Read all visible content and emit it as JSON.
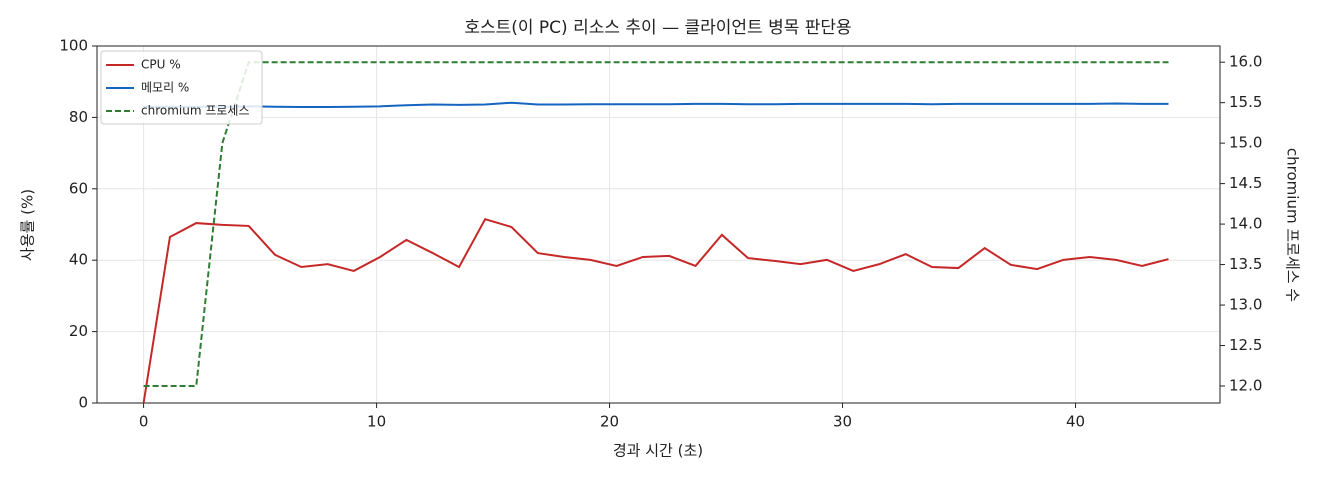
{
  "chart_data": {
    "type": "line",
    "title": "호스트(이 PC) 리소스 추이 — 클라이언트 병목 판단용",
    "xlabel": "경과 시간 (초)",
    "ylabel": "사용률 (%)",
    "y2label": "chromium 프로세스 수",
    "x": [
      0,
      1.13,
      2.26,
      3.38,
      4.51,
      5.64,
      6.77,
      7.9,
      9.02,
      10.15,
      11.28,
      12.41,
      13.54,
      14.66,
      15.79,
      16.92,
      18.05,
      19.18,
      20.3,
      21.43,
      22.56,
      23.69,
      24.82,
      25.94,
      27.07,
      28.2,
      29.33,
      30.46,
      31.58,
      32.71,
      33.84,
      34.97,
      36.1,
      37.22,
      38.35,
      39.48,
      40.61,
      41.74,
      42.86,
      43.99
    ],
    "series": [
      {
        "name": "CPU %",
        "color": "#c62828",
        "values": [
          0,
          46.5,
          50.4,
          49.9,
          49.6,
          41.5,
          38.1,
          38.9,
          37.0,
          40.9,
          45.7,
          42.0,
          38.1,
          51.5,
          49.3,
          42.0,
          40.9,
          40.1,
          38.4,
          40.9,
          41.2,
          38.4,
          47.1,
          40.6,
          39.8,
          38.9,
          40.1,
          37.0,
          38.9,
          41.7,
          38.1,
          37.8,
          43.4,
          38.7,
          37.5,
          40.1,
          40.9,
          40.1,
          38.4,
          40.3
        ]
      },
      {
        "name": "메모리 %",
        "color": "#1565c0",
        "values": [
          83.0,
          83.0,
          83.0,
          83.0,
          83.1,
          83.0,
          82.9,
          82.9,
          83.0,
          83.1,
          83.4,
          83.6,
          83.5,
          83.6,
          84.1,
          83.6,
          83.6,
          83.7,
          83.7,
          83.7,
          83.7,
          83.8,
          83.8,
          83.7,
          83.7,
          83.8,
          83.8,
          83.8,
          83.8,
          83.8,
          83.7,
          83.8,
          83.8,
          83.8,
          83.8,
          83.8,
          83.8,
          83.9,
          83.8,
          83.8
        ]
      },
      {
        "name": "chromium 프로세스",
        "color": "#2e7d32",
        "axis": "y2",
        "linestyle": "dashed",
        "values": [
          12,
          12,
          12,
          15,
          16,
          16,
          16,
          16,
          16,
          16,
          16,
          16,
          16,
          16,
          16,
          16,
          16,
          16,
          16,
          16,
          16,
          16,
          16,
          16,
          16,
          16,
          16,
          16,
          16,
          16,
          16,
          16,
          16,
          16,
          16,
          16,
          16,
          16,
          16,
          16
        ]
      }
    ],
    "xlim": [
      -2.0,
      46.2
    ],
    "xticks": [
      0,
      10,
      20,
      30,
      40
    ],
    "ylim": [
      0,
      100
    ],
    "yticks": [
      0,
      20,
      40,
      60,
      80,
      100
    ],
    "y2lim": [
      11.79,
      16.2
    ],
    "y2ticks": [
      {
        "value": 12,
        "label": "12.0"
      },
      {
        "value": 12.5,
        "label": "12.5"
      },
      {
        "value": 13,
        "label": "13.0"
      },
      {
        "value": 13.5,
        "label": "13.5"
      },
      {
        "value": 14,
        "label": "14.0"
      },
      {
        "value": 14.5,
        "label": "14.5"
      },
      {
        "value": 15,
        "label": "15.0"
      },
      {
        "value": 15.5,
        "label": "15.5"
      },
      {
        "value": 16,
        "label": "16.0"
      }
    ],
    "grid": true,
    "legend": "upper left"
  }
}
